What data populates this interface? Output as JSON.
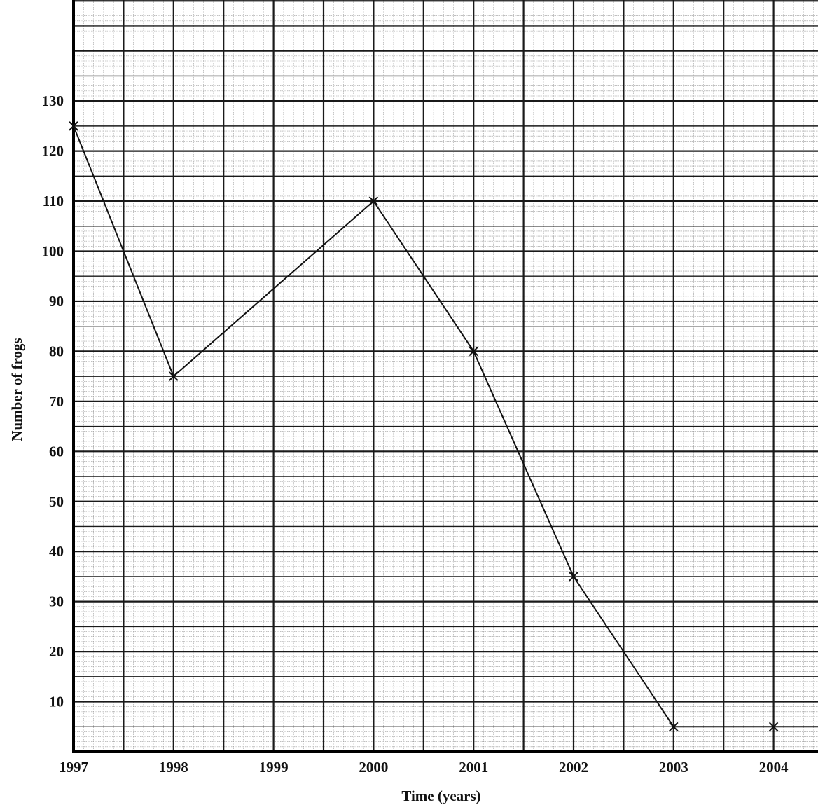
{
  "chart_data": {
    "type": "line",
    "title": "",
    "xlabel": "Time (years)",
    "ylabel": "Number of  frogs",
    "x_ticks": [
      "1997",
      "1998",
      "1999",
      "2000",
      "2001",
      "2002",
      "2003",
      "2004"
    ],
    "y_ticks": [
      10,
      20,
      30,
      40,
      50,
      60,
      70,
      80,
      90,
      100,
      110,
      120,
      130
    ],
    "xlim": [
      1997,
      2004.45
    ],
    "ylim": [
      0,
      150
    ],
    "grid": true,
    "marker": "x",
    "colors": {
      "line": "#111111",
      "grid_major": "#1a1a1a",
      "grid_minor": "#9a9a9a",
      "background": "#ffffff"
    },
    "series": [
      {
        "x": [
          1997,
          1998,
          2000,
          2001,
          2002,
          2003,
          2004
        ],
        "y": [
          125,
          75,
          110,
          80,
          35,
          5,
          5
        ],
        "continues_to_edge": 5
      }
    ]
  }
}
